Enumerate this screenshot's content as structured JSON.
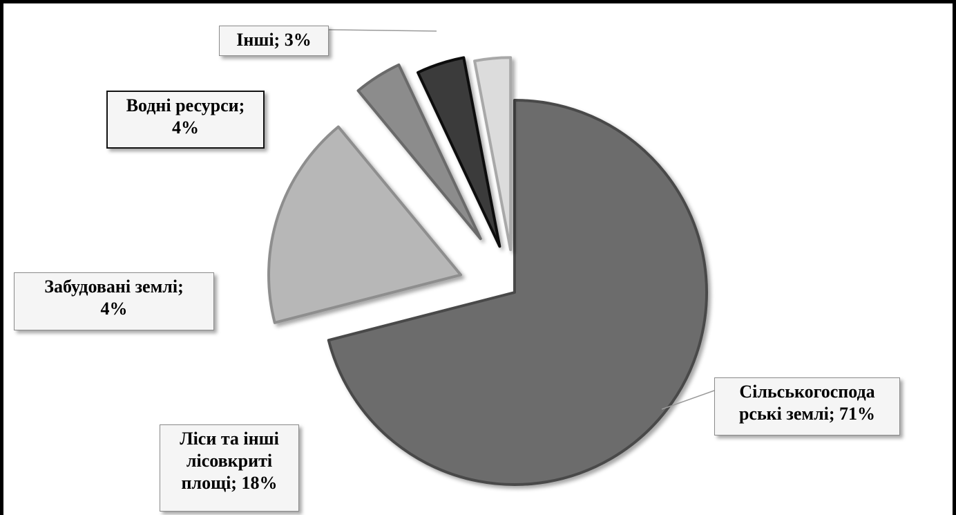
{
  "chart_data": {
    "type": "pie",
    "exploded": true,
    "slices": [
      {
        "name": "Сільськогоспода рські землі",
        "value": 71,
        "color": "#6c6c6c",
        "stroke": "#4a4a4a"
      },
      {
        "name": "Ліси та інші лісовкриті площі",
        "value": 18,
        "color": "#b7b7b7",
        "stroke": "#8e8e8e"
      },
      {
        "name": "Забудовані землі",
        "value": 4,
        "color": "#8c8c8c",
        "stroke": "#6a6a6a"
      },
      {
        "name": "Водні ресурси",
        "value": 4,
        "color": "#3a3a3a",
        "stroke": "#111111"
      },
      {
        "name": "Інші",
        "value": 3,
        "color": "#dcdcdc",
        "stroke": "#a8a8a8"
      }
    ],
    "data_labels": [
      {
        "lines": [
          "Сільськогоспода",
          "рські землі;  71%"
        ]
      },
      {
        "lines": [
          "Ліси та інші",
          "лісовкриті",
          "площі;  18%"
        ]
      },
      {
        "lines": [
          "Забудовані землі;",
          "4%"
        ]
      },
      {
        "lines": [
          "Водні ресурси;",
          "4%"
        ]
      },
      {
        "lines": [
          "Інші;  3%"
        ]
      }
    ]
  }
}
